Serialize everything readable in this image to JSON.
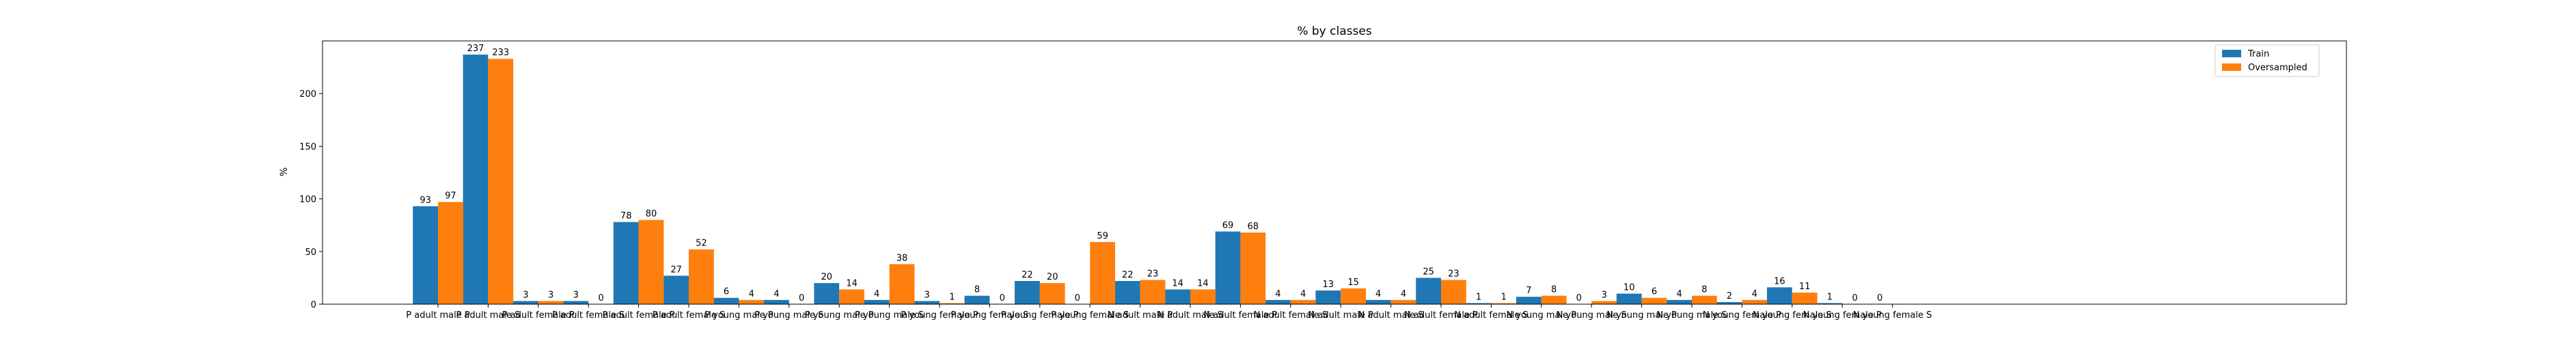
{
  "chart_data": {
    "type": "bar",
    "title": "% by classes",
    "xlabel": "",
    "ylabel": "%",
    "ylim": [
      0,
      250
    ],
    "yticks": [
      0,
      50,
      100,
      150,
      200
    ],
    "grid": false,
    "legend_position": "top-right",
    "categories": [
      "P adult male P",
      "P adult male S",
      "P adult female P",
      "P adult female S",
      "P adult female P",
      "P adult female S",
      "P young male P",
      "P young male S",
      "P young male P",
      "P young male S",
      "P young female P",
      "P young female S",
      "P young female P",
      "P young female S",
      "N adult male P",
      "N adult male S",
      "N adult female P",
      "N adult female S",
      "N adult male P",
      "N adult male S",
      "N adult female P",
      "N adult female S",
      "N young male P",
      "N young male S",
      "N young male P",
      "N young male S",
      "N young female P",
      "N young female S",
      "N young female P",
      "N young female S"
    ],
    "series": [
      {
        "name": "Train",
        "color": "#1f77b4",
        "values": [
          93,
          237,
          3,
          3,
          78,
          27,
          6,
          4,
          20,
          4,
          3,
          8,
          22,
          0,
          22,
          14,
          69,
          4,
          13,
          4,
          25,
          1,
          7,
          0,
          10,
          4,
          2,
          16,
          1,
          0
        ],
        "labels": [
          "93",
          "237",
          "3",
          "3",
          "78",
          "27",
          "6",
          "4",
          "20",
          "4",
          "3",
          "8",
          "22",
          "0",
          "22",
          "14",
          "69",
          "4",
          "13",
          "4",
          "25",
          "1",
          "7",
          "0",
          "10",
          "4",
          "2",
          "16",
          "1",
          "0"
        ]
      },
      {
        "name": "Oversampled",
        "color": "#ff7f0e",
        "values": [
          97,
          233,
          3,
          0,
          80,
          52,
          4,
          0,
          14,
          38,
          1,
          0,
          20,
          59,
          23,
          14,
          68,
          4,
          15,
          4,
          23,
          1,
          8,
          3,
          6,
          8,
          4,
          11,
          0,
          0
        ],
        "labels": [
          "97",
          "233",
          "3",
          "0",
          "80",
          "52",
          "4",
          "0",
          "14",
          "38",
          "1",
          "0",
          "20",
          "59",
          "23",
          "14",
          "68",
          "4",
          "15",
          "4",
          "23",
          "1",
          "8",
          "3",
          "6",
          "8",
          "4",
          "11",
          "0",
          ""
        ]
      }
    ]
  }
}
